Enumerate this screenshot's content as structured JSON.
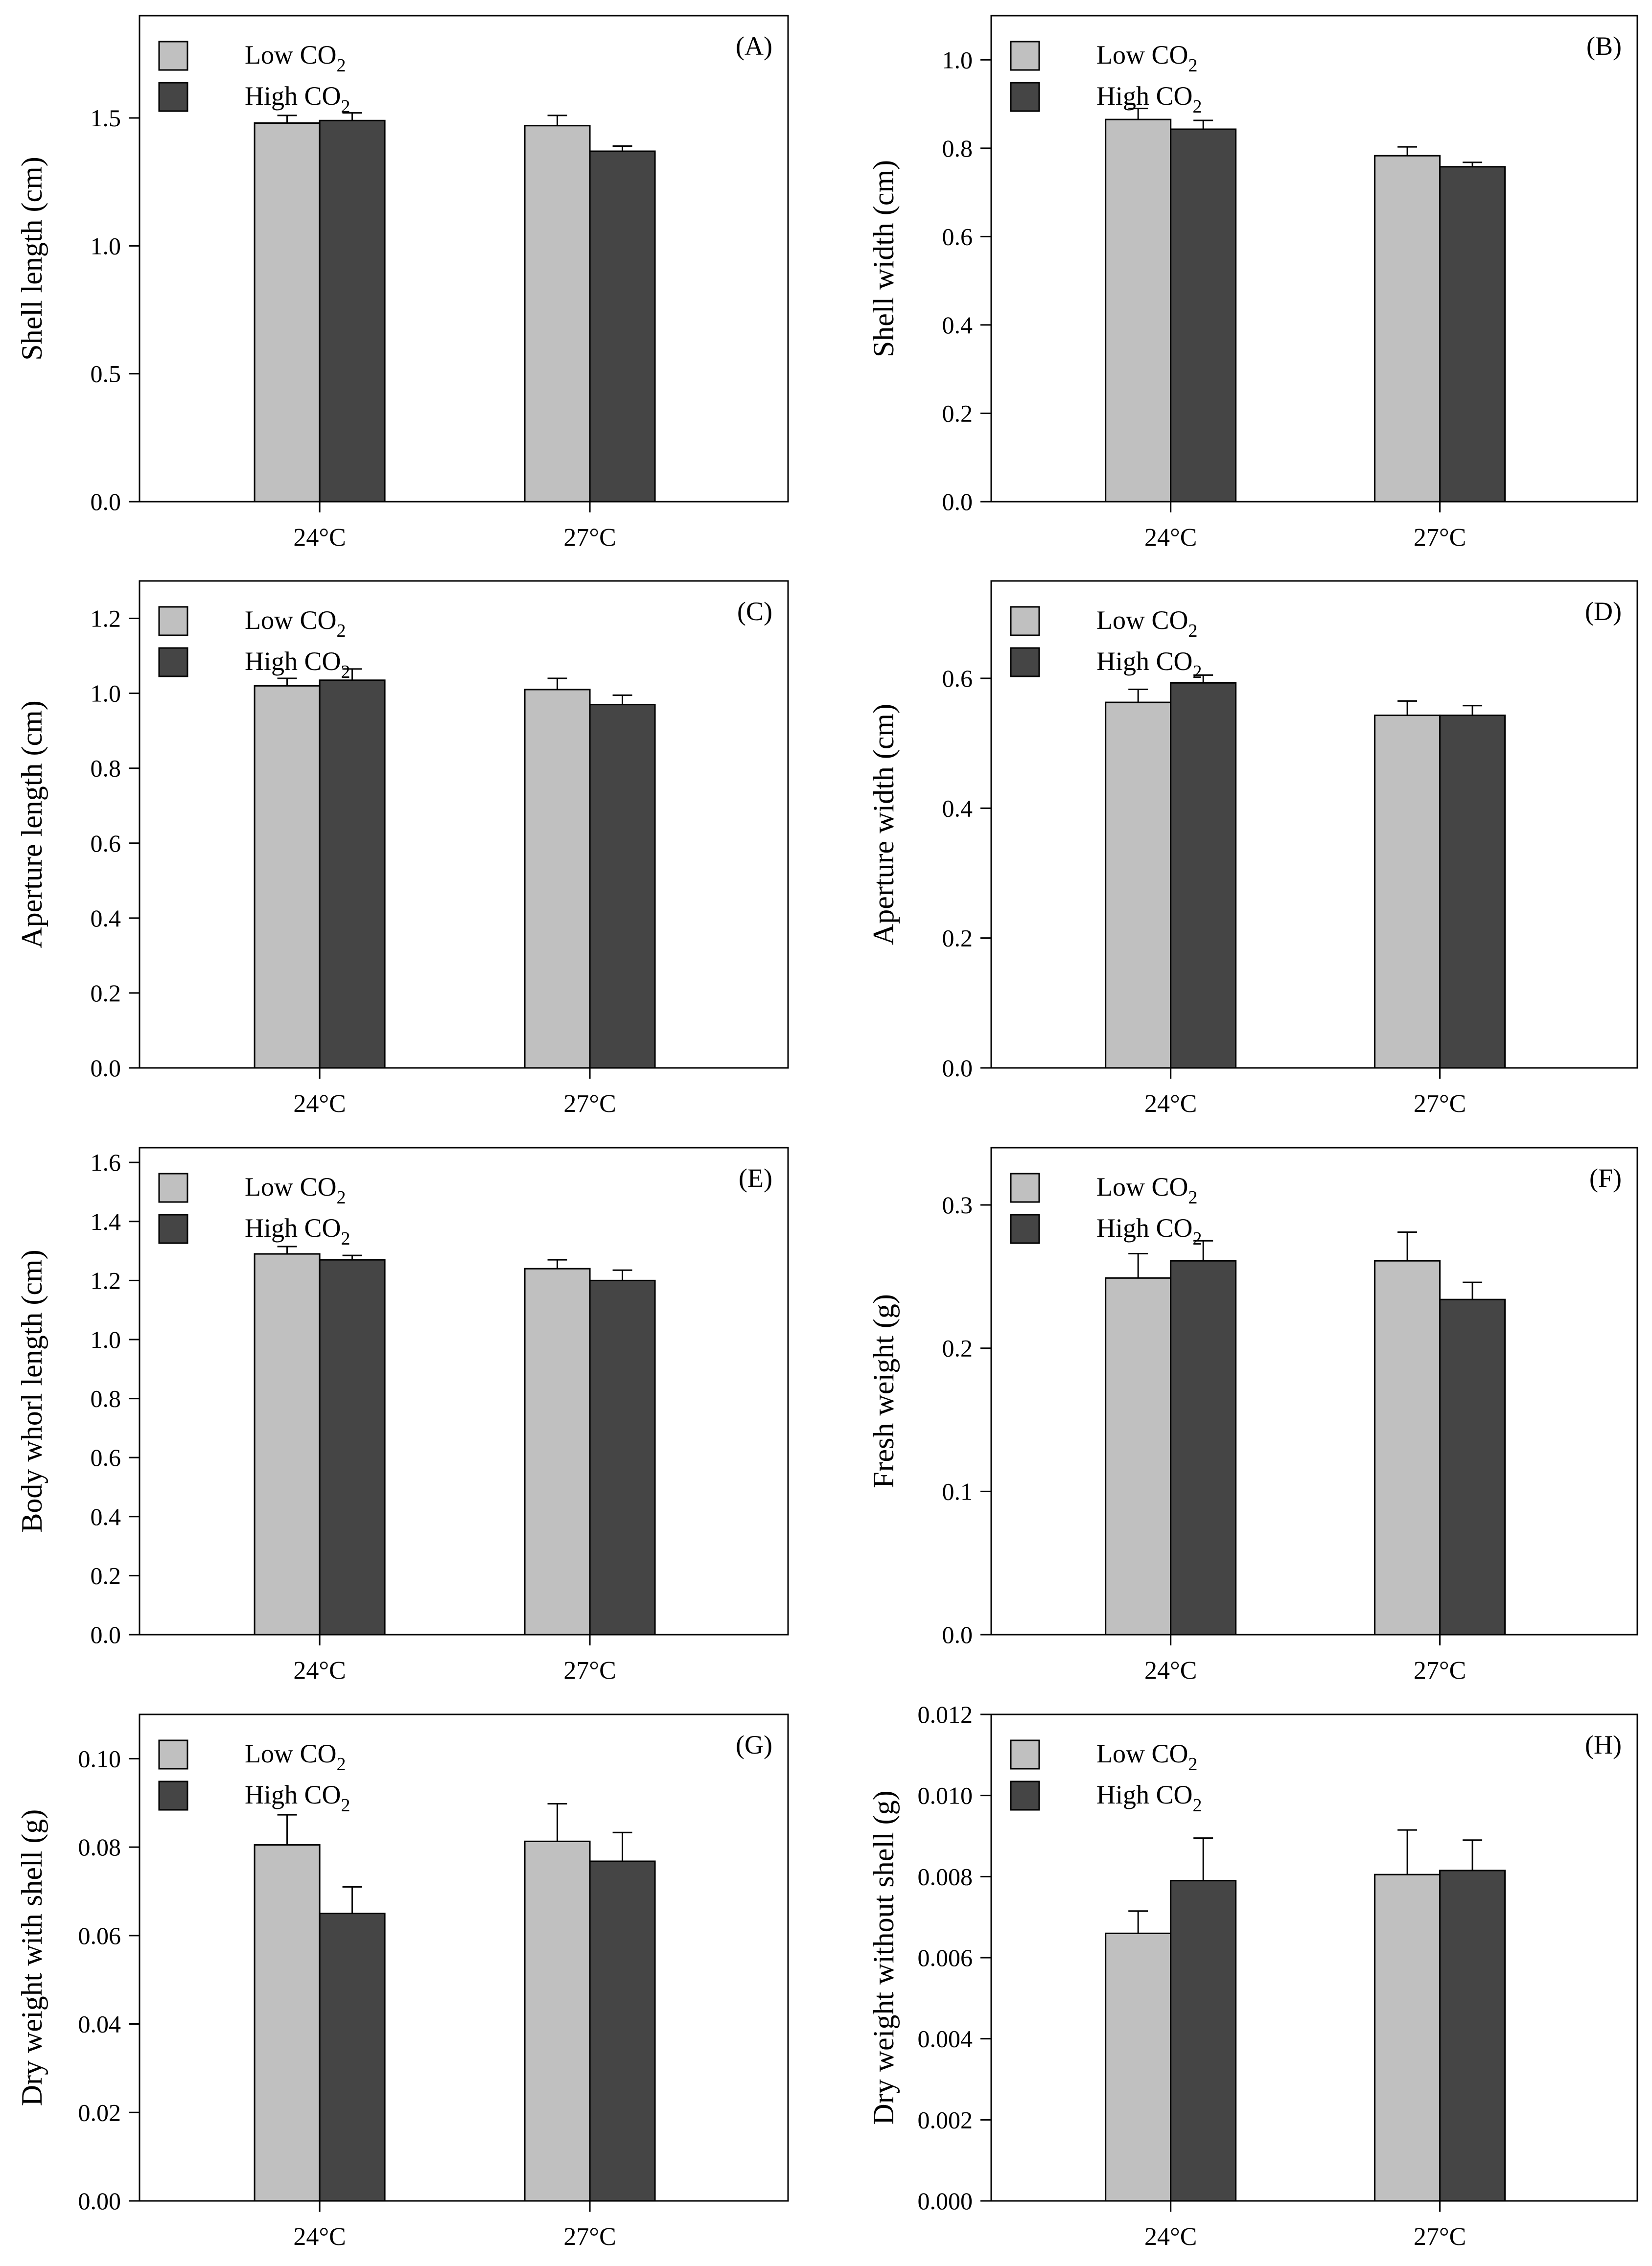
{
  "colors": {
    "low": "#c0c0c0",
    "high": "#454545",
    "stroke": "#000000"
  },
  "legend": {
    "low_label": "Low CO",
    "high_label": "High CO",
    "subscript": "2"
  },
  "chart_data": [
    {
      "type": "bar",
      "panel_label": "(A)",
      "ylabel": "Shell length (cm)",
      "categories": [
        "24°C",
        "27°C"
      ],
      "series": [
        {
          "name": "Low CO2",
          "values": [
            1.48,
            1.47
          ],
          "errors": [
            0.03,
            0.04
          ]
        },
        {
          "name": "High CO2",
          "values": [
            1.49,
            1.37
          ],
          "errors": [
            0.03,
            0.02
          ]
        }
      ],
      "ylim": [
        0,
        1.9
      ],
      "yticks": [
        0.0,
        0.5,
        1.0,
        1.5
      ],
      "tick_labels": [
        "0.0",
        "0.5",
        "1.0",
        "1.5"
      ],
      "legend_position": "top-left"
    },
    {
      "type": "bar",
      "panel_label": "(B)",
      "ylabel": "Shell width (cm)",
      "categories": [
        "24°C",
        "27°C"
      ],
      "series": [
        {
          "name": "Low CO2",
          "values": [
            0.865,
            0.783
          ],
          "errors": [
            0.025,
            0.02
          ]
        },
        {
          "name": "High CO2",
          "values": [
            0.843,
            0.758
          ],
          "errors": [
            0.02,
            0.01
          ]
        }
      ],
      "ylim": [
        0,
        1.1
      ],
      "yticks": [
        0.0,
        0.2,
        0.4,
        0.6,
        0.8,
        1.0
      ],
      "tick_labels": [
        "0.0",
        "0.2",
        "0.4",
        "0.6",
        "0.8",
        "1.0"
      ],
      "legend_position": "top-left"
    },
    {
      "type": "bar",
      "panel_label": "(C)",
      "ylabel": "Aperture length (cm)",
      "categories": [
        "24°C",
        "27°C"
      ],
      "series": [
        {
          "name": "Low CO2",
          "values": [
            1.02,
            1.01
          ],
          "errors": [
            0.02,
            0.03
          ]
        },
        {
          "name": "High CO2",
          "values": [
            1.035,
            0.97
          ],
          "errors": [
            0.03,
            0.025
          ]
        }
      ],
      "ylim": [
        0,
        1.3
      ],
      "yticks": [
        0.0,
        0.2,
        0.4,
        0.6,
        0.8,
        1.0,
        1.2
      ],
      "tick_labels": [
        "0.0",
        "0.2",
        "0.4",
        "0.6",
        "0.8",
        "1.0",
        "1.2"
      ],
      "legend_position": "top-left"
    },
    {
      "type": "bar",
      "panel_label": "(D)",
      "ylabel": "Aperture width (cm)",
      "categories": [
        "24°C",
        "27°C"
      ],
      "series": [
        {
          "name": "Low CO2",
          "values": [
            0.563,
            0.543
          ],
          "errors": [
            0.02,
            0.022
          ]
        },
        {
          "name": "High CO2",
          "values": [
            0.593,
            0.543
          ],
          "errors": [
            0.012,
            0.015
          ]
        }
      ],
      "ylim": [
        0,
        0.75
      ],
      "yticks": [
        0.0,
        0.2,
        0.4,
        0.6
      ],
      "tick_labels": [
        "0.0",
        "0.2",
        "0.4",
        "0.6"
      ],
      "legend_position": "top-left"
    },
    {
      "type": "bar",
      "panel_label": "(E)",
      "ylabel": "Body whorl length (cm)",
      "categories": [
        "24°C",
        "27°C"
      ],
      "series": [
        {
          "name": "Low CO2",
          "values": [
            1.29,
            1.24
          ],
          "errors": [
            0.025,
            0.03
          ]
        },
        {
          "name": "High CO2",
          "values": [
            1.27,
            1.2
          ],
          "errors": [
            0.015,
            0.035
          ]
        }
      ],
      "ylim": [
        0,
        1.65
      ],
      "yticks": [
        0.0,
        0.2,
        0.4,
        0.6,
        0.8,
        1.0,
        1.2,
        1.4,
        1.6
      ],
      "tick_labels": [
        "0.0",
        "0.2",
        "0.4",
        "0.6",
        "0.8",
        "1.0",
        "1.2",
        "1.4",
        "1.6"
      ],
      "legend_position": "top-left"
    },
    {
      "type": "bar",
      "panel_label": "(F)",
      "ylabel": "Fresh weight (g)",
      "categories": [
        "24°C",
        "27°C"
      ],
      "series": [
        {
          "name": "Low CO2",
          "values": [
            0.249,
            0.261
          ],
          "errors": [
            0.017,
            0.02
          ]
        },
        {
          "name": "High CO2",
          "values": [
            0.261,
            0.234
          ],
          "errors": [
            0.014,
            0.012
          ]
        }
      ],
      "ylim": [
        0,
        0.34
      ],
      "yticks": [
        0.0,
        0.1,
        0.2,
        0.3
      ],
      "tick_labels": [
        "0.0",
        "0.1",
        "0.2",
        "0.3"
      ],
      "legend_position": "top-left"
    },
    {
      "type": "bar",
      "panel_label": "(G)",
      "ylabel": "Dry weight with shell (g)",
      "categories": [
        "24°C",
        "27°C"
      ],
      "series": [
        {
          "name": "Low CO2",
          "values": [
            0.0805,
            0.0813
          ],
          "errors": [
            0.0068,
            0.0085
          ]
        },
        {
          "name": "High CO2",
          "values": [
            0.065,
            0.0768
          ],
          "errors": [
            0.006,
            0.0065
          ]
        }
      ],
      "ylim": [
        0,
        0.11
      ],
      "yticks": [
        0.0,
        0.02,
        0.04,
        0.06,
        0.08,
        0.1
      ],
      "tick_labels": [
        "0.00",
        "0.02",
        "0.04",
        "0.06",
        "0.08",
        "0.10"
      ],
      "legend_position": "top-left"
    },
    {
      "type": "bar",
      "panel_label": "(H)",
      "ylabel": "Dry weight without shell (g)",
      "categories": [
        "24°C",
        "27°C"
      ],
      "series": [
        {
          "name": "Low CO2",
          "values": [
            0.0066,
            0.00805
          ],
          "errors": [
            0.00055,
            0.0011
          ]
        },
        {
          "name": "High CO2",
          "values": [
            0.0079,
            0.00815
          ],
          "errors": [
            0.00105,
            0.00075
          ]
        }
      ],
      "ylim": [
        0,
        0.012
      ],
      "yticks": [
        0.0,
        0.002,
        0.004,
        0.006,
        0.008,
        0.01,
        0.012
      ],
      "tick_labels": [
        "0.000",
        "0.002",
        "0.004",
        "0.006",
        "0.008",
        "0.010",
        "0.012"
      ],
      "legend_position": "top-left"
    }
  ]
}
